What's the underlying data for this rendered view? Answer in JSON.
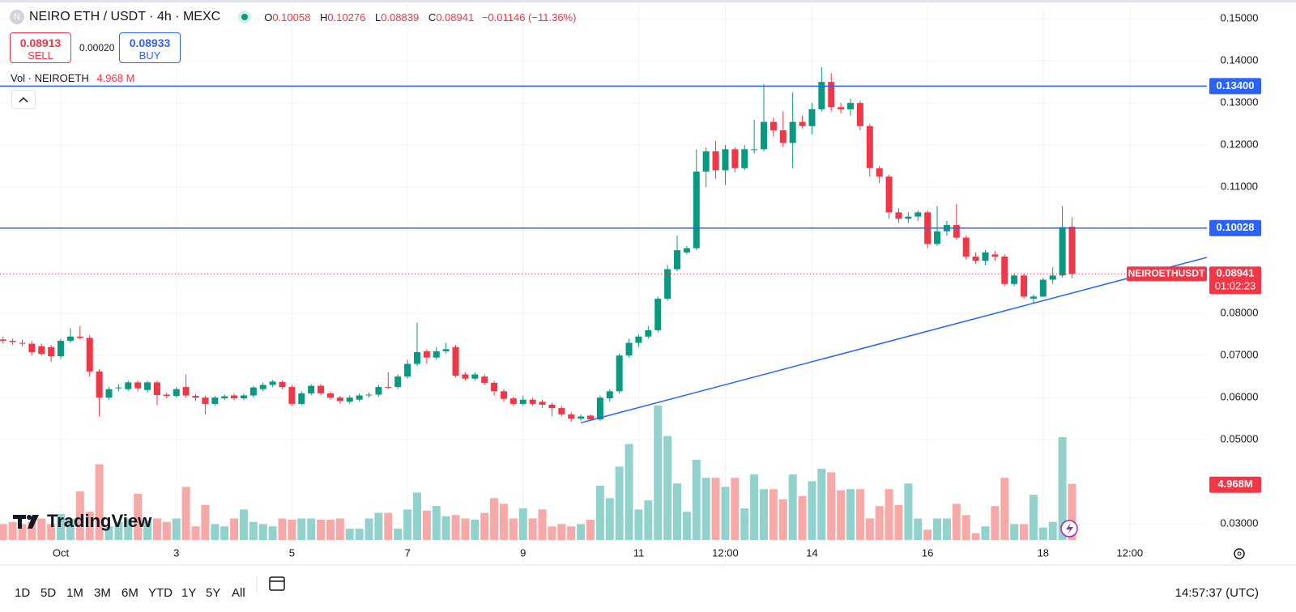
{
  "header": {
    "symbol": "NEIRO ETH / USDT · 4h · MEXC",
    "ohlc": [
      {
        "key": "O",
        "value": "0.10058"
      },
      {
        "key": "H",
        "value": "0.10276"
      },
      {
        "key": "L",
        "value": "0.08839"
      },
      {
        "key": "C",
        "value": "0.08941"
      }
    ],
    "change": "−0.01146 (−11.36%)"
  },
  "trade": {
    "sell_price": "0.08913",
    "sell": "SELL",
    "spread": "0.00020",
    "buy_price": "0.08933",
    "buy": "BUY"
  },
  "volume_legend": {
    "name": "Vol · NEIROETH",
    "value": "4.968 M"
  },
  "logo": "TradingView",
  "toolbar": {
    "ranges": [
      "1D",
      "5D",
      "1M",
      "3M",
      "6M",
      "YTD",
      "1Y",
      "5Y",
      "All"
    ],
    "clock": "14:57:37 (UTC)"
  },
  "chart_data": {
    "type": "candlestick",
    "categories": [
      null,
      null,
      null,
      null,
      null,
      null,
      "Oct",
      null,
      null,
      null,
      null,
      null,
      null,
      null,
      null,
      null,
      null,
      null,
      "3",
      null,
      null,
      null,
      null,
      null,
      null,
      null,
      null,
      null,
      null,
      null,
      "5",
      null,
      null,
      null,
      null,
      null,
      null,
      null,
      null,
      null,
      null,
      null,
      "7",
      null,
      null,
      null,
      null,
      null,
      null,
      null,
      null,
      null,
      null,
      null,
      "9",
      null,
      null,
      null,
      null,
      null,
      null,
      null,
      null,
      null,
      null,
      null,
      "11",
      null,
      null,
      null,
      null,
      null,
      null,
      null,
      null,
      "12:00",
      null,
      null,
      null,
      null,
      null,
      null,
      null,
      null,
      "14",
      null,
      null,
      null,
      null,
      null,
      null,
      null,
      null,
      null,
      null,
      null,
      "16",
      null,
      null,
      null,
      null,
      null,
      null,
      null,
      null,
      null,
      null,
      null,
      "18",
      null,
      null,
      null,
      null,
      null,
      null,
      null,
      null,
      "12:00"
    ],
    "open": [
      0.0738,
      0.0735,
      0.073,
      0.0728,
      0.0722,
      0.072,
      0.0698,
      0.0735,
      0.0745,
      0.0742,
      0.0662,
      0.06,
      0.0622,
      0.062,
      0.0636,
      0.0618,
      0.0636,
      0.0607,
      0.0604,
      0.0625,
      0.0604,
      0.06,
      0.0585,
      0.0598,
      0.0605,
      0.0598,
      0.0605,
      0.062,
      0.063,
      0.0637,
      0.0625,
      0.0585,
      0.061,
      0.0628,
      0.061,
      0.06,
      0.059,
      0.0595,
      0.0605,
      0.0607,
      0.0625,
      0.0625,
      0.065,
      0.068,
      0.071,
      0.0695,
      0.071,
      0.072,
      0.0655,
      0.0645,
      0.065,
      0.0635,
      0.0615,
      0.0598,
      0.0585,
      0.0595,
      0.059,
      0.0583,
      0.0575,
      0.056,
      0.055,
      0.0557,
      0.0548,
      0.0598,
      0.0615,
      0.07,
      0.073,
      0.0745,
      0.076,
      0.0835,
      0.0905,
      0.0945,
      0.0955,
      0.1137,
      0.1185,
      0.114,
      0.119,
      0.1145,
      0.1188,
      0.119,
      0.1255,
      0.1235,
      0.1205,
      0.1255,
      0.1245,
      0.1285,
      0.135,
      0.129,
      0.1285,
      0.13,
      0.1245,
      0.1145,
      0.1125,
      0.104,
      0.1025,
      0.103,
      0.104,
      0.0965,
      0.0995,
      0.101,
      0.098,
      0.0935,
      0.0925,
      0.094,
      0.0935,
      0.087,
      0.089,
      0.0835,
      0.084,
      0.088,
      0.089,
      0.10058,
      null,
      null,
      null,
      null,
      null,
      null
    ],
    "high": [
      0.0745,
      0.074,
      0.0738,
      0.0735,
      0.0728,
      0.0725,
      0.074,
      0.0765,
      0.077,
      0.0748,
      0.0668,
      0.0625,
      0.0632,
      0.064,
      0.064,
      0.064,
      0.064,
      0.0612,
      0.0625,
      0.0655,
      0.0608,
      0.0604,
      0.0604,
      0.0608,
      0.061,
      0.061,
      0.0628,
      0.0636,
      0.0642,
      0.064,
      0.063,
      0.0615,
      0.0632,
      0.0632,
      0.0614,
      0.0604,
      0.0605,
      0.061,
      0.0612,
      0.063,
      0.066,
      0.0655,
      0.069,
      0.0778,
      0.0715,
      0.072,
      0.073,
      0.0725,
      0.066,
      0.066,
      0.0655,
      0.064,
      0.062,
      0.0602,
      0.0605,
      0.06,
      0.0595,
      0.0588,
      0.058,
      0.0565,
      0.056,
      0.056,
      0.0605,
      0.062,
      0.0705,
      0.074,
      0.075,
      0.077,
      0.084,
      0.0915,
      0.0985,
      0.096,
      0.119,
      0.1195,
      0.121,
      0.12,
      0.1195,
      0.12,
      0.126,
      0.1345,
      0.1265,
      0.128,
      0.1325,
      0.127,
      0.13,
      0.1385,
      0.137,
      0.13,
      0.131,
      0.1305,
      0.125,
      0.115,
      0.113,
      0.105,
      0.104,
      0.1045,
      0.1045,
      0.1055,
      0.102,
      0.106,
      0.0985,
      0.0945,
      0.095,
      0.0948,
      0.094,
      0.0895,
      0.0895,
      0.0845,
      0.0885,
      0.091,
      0.1055,
      0.10276,
      null,
      null,
      null,
      null,
      null,
      null
    ],
    "low": [
      0.0728,
      0.0725,
      0.0722,
      0.07,
      0.07,
      0.0685,
      0.0692,
      0.073,
      0.0738,
      0.065,
      0.0555,
      0.0595,
      0.0615,
      0.0616,
      0.0615,
      0.0612,
      0.0582,
      0.0598,
      0.06,
      0.06,
      0.0592,
      0.056,
      0.058,
      0.0594,
      0.0594,
      0.0594,
      0.06,
      0.0615,
      0.0625,
      0.062,
      0.058,
      0.0582,
      0.0605,
      0.0605,
      0.0595,
      0.0585,
      0.0585,
      0.059,
      0.06,
      0.0602,
      0.062,
      0.062,
      0.0645,
      0.0675,
      0.068,
      0.069,
      0.0705,
      0.0648,
      0.064,
      0.064,
      0.063,
      0.0605,
      0.059,
      0.058,
      0.058,
      0.058,
      0.0575,
      0.0555,
      0.0555,
      0.0542,
      0.0545,
      0.0545,
      0.0545,
      0.059,
      0.061,
      0.0695,
      0.072,
      0.074,
      0.0755,
      0.083,
      0.09,
      0.094,
      0.095,
      0.11,
      0.112,
      0.1105,
      0.1135,
      0.114,
      0.118,
      0.1185,
      0.122,
      0.1195,
      0.1145,
      0.124,
      0.1225,
      0.128,
      0.128,
      0.1275,
      0.127,
      0.1235,
      0.1125,
      0.111,
      0.1025,
      0.1015,
      0.1015,
      0.102,
      0.0955,
      0.096,
      0.0985,
      0.0975,
      0.0928,
      0.0918,
      0.0915,
      0.0925,
      0.0865,
      0.0865,
      0.0835,
      0.0825,
      0.0838,
      0.087,
      0.0885,
      0.08839,
      null,
      null,
      null,
      null,
      null,
      null
    ],
    "close": [
      0.0735,
      0.0732,
      0.0728,
      0.0708,
      0.0704,
      0.0698,
      0.0735,
      0.0745,
      0.0742,
      0.0662,
      0.06,
      0.062,
      0.0624,
      0.0636,
      0.0622,
      0.0636,
      0.0606,
      0.0604,
      0.062,
      0.0605,
      0.06,
      0.0585,
      0.06,
      0.0603,
      0.0598,
      0.0605,
      0.0624,
      0.063,
      0.0638,
      0.0625,
      0.0585,
      0.061,
      0.0628,
      0.061,
      0.06,
      0.0592,
      0.06,
      0.0605,
      0.0607,
      0.0625,
      0.0624,
      0.065,
      0.068,
      0.0708,
      0.0695,
      0.071,
      0.0715,
      0.0652,
      0.0645,
      0.0655,
      0.0635,
      0.0615,
      0.0597,
      0.0585,
      0.0595,
      0.0585,
      0.0583,
      0.0575,
      0.056,
      0.055,
      0.0555,
      0.0548,
      0.06,
      0.0615,
      0.07,
      0.073,
      0.0745,
      0.076,
      0.0835,
      0.0905,
      0.095,
      0.0955,
      0.1137,
      0.1185,
      0.114,
      0.119,
      0.1145,
      0.119,
      0.119,
      0.1255,
      0.1235,
      0.1205,
      0.1255,
      0.1245,
      0.1285,
      0.135,
      0.129,
      0.1285,
      0.13,
      0.1245,
      0.1145,
      0.1125,
      0.104,
      0.1025,
      0.103,
      0.104,
      0.0965,
      0.0995,
      0.101,
      0.098,
      0.0935,
      0.0925,
      0.0945,
      0.0935,
      0.087,
      0.089,
      0.084,
      0.084,
      0.088,
      0.089,
      0.1005,
      0.08941,
      null,
      null,
      null,
      null,
      null,
      null
    ],
    "volume": [
      1.4,
      1.6,
      1.4,
      1.6,
      1.9,
      1.4,
      2.3,
      1.9,
      4.3,
      2.5,
      6.7,
      1.2,
      1.6,
      1.9,
      4.1,
      1.7,
      1.9,
      1.6,
      1.9,
      4.7,
      1.2,
      3.1,
      1.4,
      1.2,
      1.9,
      2.7,
      1.6,
      1.4,
      1.2,
      1.9,
      1.8,
      1.9,
      1.9,
      1.8,
      1.8,
      1.9,
      1.0,
      1.0,
      1.9,
      2.4,
      2.4,
      1.0,
      2.7,
      4.2,
      2.6,
      3.0,
      2.1,
      2.2,
      1.9,
      1.8,
      2.4,
      3.7,
      3.2,
      1.9,
      2.8,
      1.9,
      2.7,
      1.2,
      1.4,
      1.2,
      1.4,
      1.8,
      4.8,
      3.7,
      6.5,
      8.5,
      2.7,
      3.5,
      11.9,
      9.2,
      5.0,
      2.5,
      7.1,
      5.5,
      5.5,
      4.7,
      5.5,
      2.8,
      5.8,
      4.5,
      4.5,
      3.6,
      5.8,
      3.9,
      5.2,
      6.3,
      6.0,
      4.4,
      4.5,
      4.5,
      1.9,
      3.0,
      4.5,
      3.1,
      5.0,
      1.9,
      0.9,
      1.9,
      1.9,
      3.2,
      2.2,
      0.6,
      1.2,
      3.0,
      5.5,
      1.4,
      1.4,
      4.0,
      1.1,
      1.6,
      9.1,
      4.968,
      null,
      null,
      null,
      null,
      null,
      null
    ],
    "volume_label": "4.968M",
    "ylim": [
      0.0204,
      0.1535
    ],
    "yticks": [
      {
        "value": 0.03,
        "label": "0.03000"
      },
      {
        "value": 0.05,
        "label": "0.05000"
      },
      {
        "value": 0.06,
        "label": "0.06000"
      },
      {
        "value": 0.07,
        "label": "0.07000"
      },
      {
        "value": 0.08,
        "label": "0.08000"
      },
      {
        "value": 0.11,
        "label": "0.11000"
      },
      {
        "value": 0.12,
        "label": "0.12000"
      },
      {
        "value": 0.13,
        "label": "0.13000"
      },
      {
        "value": 0.14,
        "label": "0.14000"
      },
      {
        "value": 0.15,
        "label": "0.15000"
      }
    ],
    "hlines": [
      {
        "value": 0.134,
        "label": "0.13400"
      },
      {
        "value": 0.10028,
        "label": "0.10028"
      }
    ],
    "trendline": {
      "start": [
        60,
        0.054
      ],
      "end": [
        125,
        0.0933
      ]
    },
    "last_price": {
      "value": 0.08941,
      "label": "0.08941",
      "symbol": "NEIROETHUSDT",
      "countdown": "01:02:23"
    },
    "grid": true,
    "up_color": "#089981",
    "down_color": "#f23645",
    "volume_up_color": "#92d2cc",
    "volume_down_color": "#f7a9a7",
    "line_color": "#2962ff"
  }
}
